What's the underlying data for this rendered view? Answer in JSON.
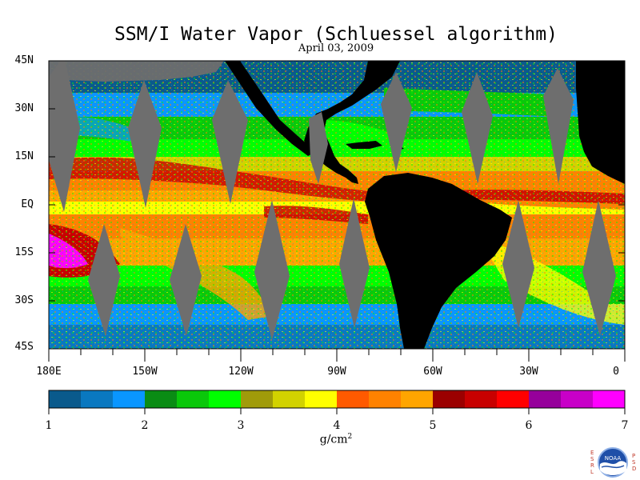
{
  "title": "SSM/I Water Vapor (Schluessel algorithm)",
  "date": "April 03, 2009",
  "lat_labels": [
    "45N",
    "30N",
    "15N",
    "EQ",
    "15S",
    "30S",
    "45S"
  ],
  "lon_labels": [
    "180E",
    "150W",
    "120W",
    "90W",
    "60W",
    "30W",
    "0"
  ],
  "colorbar": {
    "labels": [
      "1",
      "2",
      "3",
      "4",
      "5",
      "6",
      "7"
    ],
    "units": "g/cm",
    "units_exp": "2",
    "colors": [
      "#0a5a8c",
      "#0a78c0",
      "#0a96ff",
      "#0a8c14",
      "#0ac80a",
      "#00ff00",
      "#a09b0a",
      "#d2d200",
      "#ffff00",
      "#ff5a00",
      "#ff8200",
      "#ffa500",
      "#9b0000",
      "#c80000",
      "#ff0000",
      "#96009b",
      "#c800c8",
      "#ff00ff"
    ]
  },
  "land_color": "#000000",
  "nodata_color": "#6e6e6e",
  "logo": {
    "left_letters": "ESRL",
    "right_letters": "PSD",
    "badge_text": "NOAA"
  }
}
